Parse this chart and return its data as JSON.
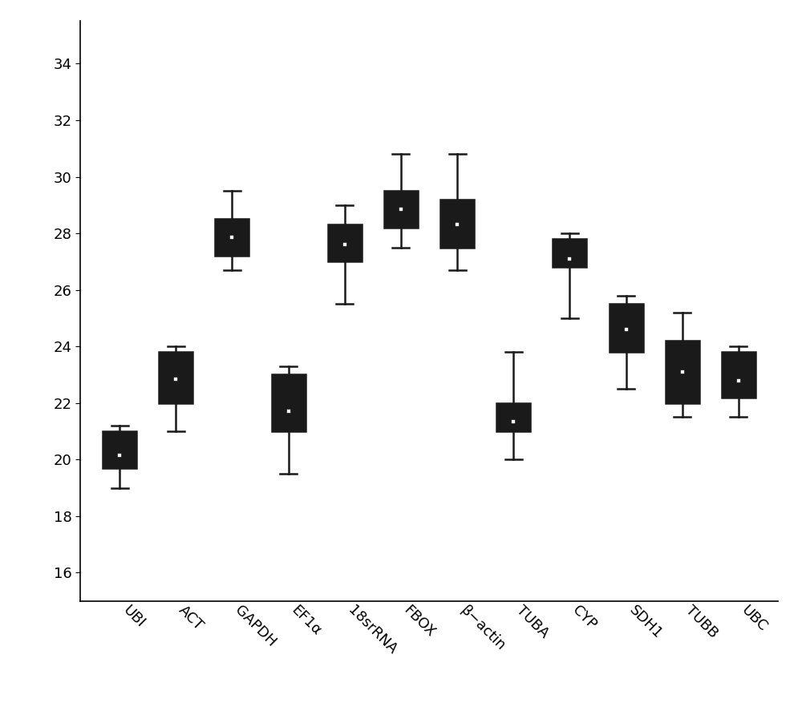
{
  "categories": [
    "UBI",
    "ACT",
    "GAPDH",
    "EF1α",
    "18srRNA",
    "FBOX",
    "β−actin",
    "TUBA",
    "CYP",
    "SDH1",
    "TUBB",
    "UBC"
  ],
  "boxes": [
    {
      "whislo": 19.0,
      "q1": 19.7,
      "median": 20.5,
      "q3": 21.0,
      "whishi": 21.2,
      "mean": 20.15
    },
    {
      "whislo": 21.0,
      "q1": 22.0,
      "median": 23.0,
      "q3": 23.8,
      "whishi": 24.0,
      "mean": 22.85
    },
    {
      "whislo": 26.7,
      "q1": 27.2,
      "median": 27.9,
      "q3": 28.5,
      "whishi": 29.5,
      "mean": 27.85
    },
    {
      "whislo": 19.5,
      "q1": 21.0,
      "median": 22.0,
      "q3": 23.0,
      "whishi": 23.3,
      "mean": 21.7
    },
    {
      "whislo": 25.5,
      "q1": 27.0,
      "median": 27.9,
      "q3": 28.3,
      "whishi": 29.0,
      "mean": 27.6
    },
    {
      "whislo": 27.5,
      "q1": 28.2,
      "median": 28.5,
      "q3": 29.5,
      "whishi": 30.8,
      "mean": 28.85
    },
    {
      "whislo": 26.7,
      "q1": 27.5,
      "median": 28.0,
      "q3": 29.2,
      "whishi": 30.8,
      "mean": 28.3
    },
    {
      "whislo": 20.0,
      "q1": 21.0,
      "median": 21.3,
      "q3": 22.0,
      "whishi": 23.8,
      "mean": 21.35
    },
    {
      "whislo": 25.0,
      "q1": 26.8,
      "median": 27.2,
      "q3": 27.8,
      "whishi": 28.0,
      "mean": 27.1
    },
    {
      "whislo": 22.5,
      "q1": 23.8,
      "median": 24.5,
      "q3": 25.5,
      "whishi": 25.8,
      "mean": 24.6
    },
    {
      "whislo": 21.5,
      "q1": 22.0,
      "median": 23.2,
      "q3": 24.2,
      "whishi": 25.2,
      "mean": 23.1
    },
    {
      "whislo": 21.5,
      "q1": 22.2,
      "median": 22.8,
      "q3": 23.8,
      "whishi": 24.0,
      "mean": 22.8
    }
  ],
  "box_facecolor": "#c8c8c8",
  "box_edge_color": "#1a1a1a",
  "median_color": "#1a1a1a",
  "whisker_color": "#1a1a1a",
  "cap_color": "#1a1a1a",
  "mean_marker_facecolor": "#ffffff",
  "mean_marker_edgecolor": "#1a1a1a",
  "ylim": [
    15.0,
    35.5
  ],
  "yticks": [
    16,
    18,
    20,
    22,
    24,
    26,
    28,
    30,
    32,
    34
  ],
  "box_width": 0.6,
  "linewidth": 1.8,
  "figsize": [
    10.0,
    8.82
  ],
  "dpi": 100,
  "background_color": "#ffffff",
  "tick_fontsize": 13,
  "xlabel_rotation": -45,
  "xlabel_ha": "left"
}
